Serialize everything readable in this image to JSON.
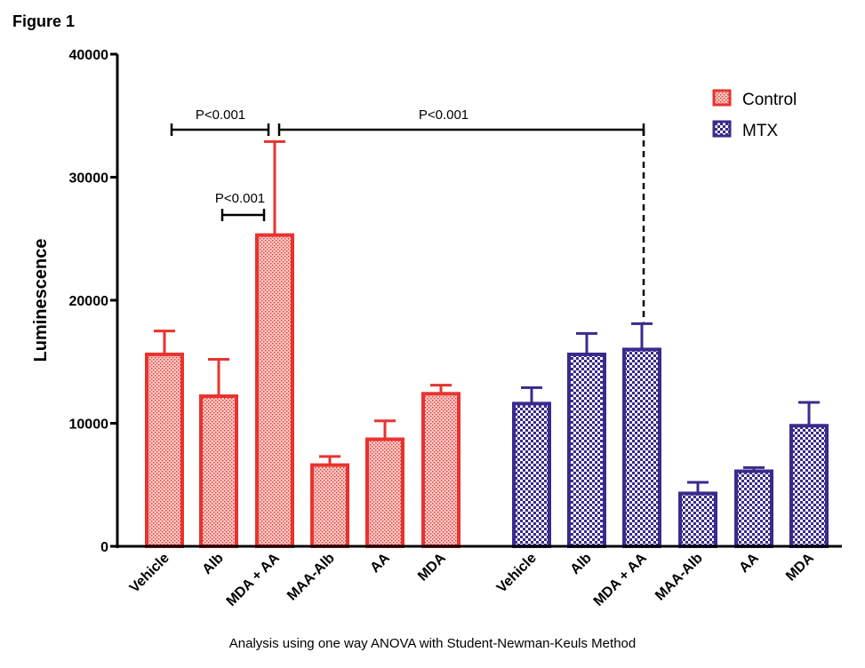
{
  "figure_label": "Figure 1",
  "caption": "Analysis using one way ANOVA with Student-Newman-Keuls Method",
  "chart_data": {
    "type": "bar",
    "title": "",
    "xlabel": "",
    "ylabel": "Luminescence",
    "ylim": [
      0,
      40000
    ],
    "yticks": [
      0,
      10000,
      20000,
      30000,
      40000
    ],
    "categories": [
      "Vehicle",
      "Alb",
      "MDA + AA",
      "MAA-Alb",
      "AA",
      "MDA"
    ],
    "series": [
      {
        "name": "Control",
        "color": "#e8332f",
        "pattern": "fine-dots",
        "values": [
          15600,
          12200,
          25300,
          6600,
          8700,
          12400
        ],
        "errors": [
          1900,
          3000,
          7600,
          700,
          1500,
          700
        ]
      },
      {
        "name": "MTX",
        "color": "#3b2a8c",
        "pattern": "checkerboard",
        "values": [
          11600,
          15600,
          16000,
          4300,
          6100,
          9800
        ],
        "errors": [
          1300,
          1700,
          2100,
          900,
          300,
          1900
        ]
      }
    ],
    "legend": {
      "position": "top-right",
      "entries": [
        "Control",
        "MTX"
      ]
    },
    "annotations": [
      {
        "label": "P<0.001",
        "from": "Control Vehicle",
        "to": "Control MDA + AA"
      },
      {
        "label": "P<0.001",
        "from": "Control Alb",
        "to": "Control MDA + AA"
      },
      {
        "label": "P<0.001",
        "from": "Control MDA + AA",
        "to": "MTX MDA + AA"
      }
    ]
  }
}
